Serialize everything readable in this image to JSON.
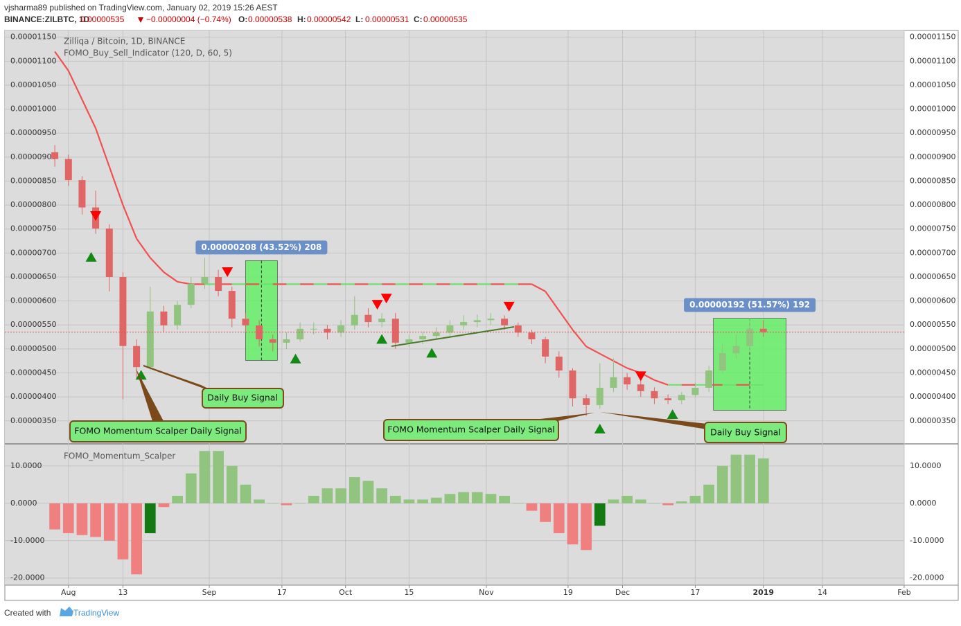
{
  "header": {
    "byline": "vjsharma89 published on TradingView.com, January 02, 2019 15:26 AEST",
    "symbol": "BINANCE:ZILBTC, 1D",
    "last": "0.00000535",
    "change": "−0.00000004 (−0.74%)",
    "ohlc": [
      {
        "label": "O:",
        "value": "0.00000538"
      },
      {
        "label": "H:",
        "value": "0.00000542"
      },
      {
        "label": "L:",
        "value": "0.00000531"
      },
      {
        "label": "C:",
        "value": "0.00000535"
      }
    ]
  },
  "footer": {
    "created": "Created with",
    "brand": "TradingView"
  },
  "chart_data": [
    {
      "type": "candlestick",
      "title": "Zilliqa / Bitcoin, 1D, BINANCE",
      "subtitle": "FOMO_Buy_Sell_Indicator (120, D, 60, 5)",
      "x": [
        "2018-07-29",
        "2018-08-01",
        "2018-08-04",
        "2018-08-07",
        "2018-08-10",
        "2018-08-13",
        "2018-08-16",
        "2018-08-19",
        "2018-08-22",
        "2018-08-25",
        "2018-08-28",
        "2018-08-31",
        "2018-09-03",
        "2018-09-06",
        "2018-09-09",
        "2018-09-12",
        "2018-09-15",
        "2018-09-18",
        "2018-09-21",
        "2018-09-24",
        "2018-09-27",
        "2018-09-30",
        "2018-10-03",
        "2018-10-06",
        "2018-10-09",
        "2018-10-12",
        "2018-10-15",
        "2018-10-18",
        "2018-10-21",
        "2018-10-24",
        "2018-10-27",
        "2018-10-30",
        "2018-11-02",
        "2018-11-05",
        "2018-11-08",
        "2018-11-11",
        "2018-11-14",
        "2018-11-17",
        "2018-11-20",
        "2018-11-23",
        "2018-11-26",
        "2018-11-29",
        "2018-12-02",
        "2018-12-05",
        "2018-12-08",
        "2018-12-11",
        "2018-12-14",
        "2018-12-17",
        "2018-12-20",
        "2018-12-23",
        "2018-12-26",
        "2018-12-29",
        "2019-01-01"
      ],
      "open": [
        9.1e-06,
        8.96e-06,
        8.52e-06,
        7.95e-06,
        7.51e-06,
        6.5e-06,
        5.06e-06,
        4.62e-06,
        5.78e-06,
        5.49e-06,
        5.92e-06,
        6.36e-06,
        6.5e-06,
        6.21e-06,
        5.63e-06,
        5.49e-06,
        5.2e-06,
        5.13e-06,
        5.2e-06,
        5.42e-06,
        5.42e-06,
        5.34e-06,
        5.49e-06,
        5.71e-06,
        5.56e-06,
        5.63e-06,
        5.13e-06,
        5.2e-06,
        5.27e-06,
        5.34e-06,
        5.49e-06,
        5.56e-06,
        5.6e-06,
        5.63e-06,
        5.49e-06,
        5.34e-06,
        5.2e-06,
        4.84e-06,
        4.55e-06,
        3.97e-06,
        3.83e-06,
        4.19e-06,
        4.41e-06,
        4.26e-06,
        4.12e-06,
        3.97e-06,
        3.93e-06,
        4.04e-06,
        4.19e-06,
        4.55e-06,
        4.91e-06,
        5.06e-06,
        5.42e-06
      ],
      "high": [
        9.25e-06,
        9.05e-06,
        8.6e-06,
        8.3e-06,
        7.6e-06,
        6.6e-06,
        5.2e-06,
        6.3e-06,
        5.9e-06,
        6e-06,
        6.5e-06,
        6.9e-06,
        6.65e-06,
        6.3e-06,
        5.75e-06,
        5.6e-06,
        5.3e-06,
        5.35e-06,
        5.55e-06,
        5.55e-06,
        5.5e-06,
        5.6e-06,
        6.1e-06,
        5.85e-06,
        5.75e-06,
        5.75e-06,
        5.3e-06,
        5.35e-06,
        5.45e-06,
        5.6e-06,
        5.7e-06,
        5.72e-06,
        5.75e-06,
        5.7e-06,
        5.55e-06,
        5.4e-06,
        5.25e-06,
        4.95e-06,
        4.6e-06,
        4.05e-06,
        4.7e-06,
        4.8e-06,
        4.5e-06,
        4.35e-06,
        4.2e-06,
        4.05e-06,
        4.1e-06,
        4.3e-06,
        4.65e-06,
        5.1e-06,
        5.3e-06,
        5.65e-06,
        5.6e-06
      ],
      "low": [
        8.8e-06,
        8.4e-06,
        7.8e-06,
        7.4e-06,
        6.2e-06,
        3.95e-06,
        4.4e-06,
        4.55e-06,
        5.35e-06,
        5.4e-06,
        5.85e-06,
        6.25e-06,
        6.1e-06,
        5.45e-06,
        5.35e-06,
        5.05e-06,
        4.95e-06,
        5e-06,
        5.15e-06,
        5.3e-06,
        5.2e-06,
        5.25e-06,
        5.4e-06,
        5.45e-06,
        5.45e-06,
        5e-06,
        5.05e-06,
        5.1e-06,
        5.2e-06,
        5.25e-06,
        5.4e-06,
        5.45e-06,
        5.5e-06,
        5.4e-06,
        5.25e-06,
        5.1e-06,
        4.7e-06,
        4.4e-06,
        3.8e-06,
        3.6e-06,
        3.75e-06,
        4.1e-06,
        4.15e-06,
        4e-06,
        3.85e-06,
        3.85e-06,
        3.85e-06,
        4e-06,
        4.1e-06,
        4.5e-06,
        4.8e-06,
        4.95e-06,
        5.25e-06
      ],
      "close": [
        8.96e-06,
        8.52e-06,
        7.95e-06,
        7.51e-06,
        6.5e-06,
        5.06e-06,
        4.62e-06,
        5.78e-06,
        5.49e-06,
        5.92e-06,
        6.36e-06,
        6.5e-06,
        6.21e-06,
        5.63e-06,
        5.49e-06,
        5.2e-06,
        5.13e-06,
        5.2e-06,
        5.42e-06,
        5.42e-06,
        5.34e-06,
        5.49e-06,
        5.71e-06,
        5.56e-06,
        5.63e-06,
        5.13e-06,
        5.2e-06,
        5.27e-06,
        5.34e-06,
        5.49e-06,
        5.56e-06,
        5.6e-06,
        5.63e-06,
        5.49e-06,
        5.34e-06,
        5.2e-06,
        4.84e-06,
        4.55e-06,
        3.97e-06,
        3.83e-06,
        4.19e-06,
        4.41e-06,
        4.26e-06,
        4.12e-06,
        3.97e-06,
        3.93e-06,
        4.04e-06,
        4.19e-06,
        4.55e-06,
        4.91e-06,
        5.06e-06,
        5.42e-06,
        5.35e-06
      ],
      "indicator": [
        1.12e-05,
        1.08e-05,
        1.02e-05,
        9.6e-06,
        8.8e-06,
        8e-06,
        7.3e-06,
        6.9e-06,
        6.6e-06,
        6.4e-06,
        6.35e-06,
        6.35e-06,
        6.35e-06,
        6.35e-06,
        6.35e-06,
        6.35e-06,
        6.35e-06,
        6.35e-06,
        6.35e-06,
        6.35e-06,
        6.35e-06,
        6.35e-06,
        6.35e-06,
        6.35e-06,
        6.35e-06,
        6.35e-06,
        6.35e-06,
        6.35e-06,
        6.35e-06,
        6.35e-06,
        6.35e-06,
        6.35e-06,
        6.35e-06,
        6.35e-06,
        6.35e-06,
        6.35e-06,
        6.2e-06,
        5.8e-06,
        5.4e-06,
        5.05e-06,
        4.9e-06,
        4.75e-06,
        4.6e-06,
        4.5e-06,
        4.35e-06,
        4.25e-06,
        4.25e-06,
        4.25e-06,
        4.25e-06,
        4.25e-06,
        4.25e-06,
        4.25e-06,
        4.25e-06
      ],
      "up_color": "#90c47f",
      "down_color": "#e06666",
      "sell_signals": {
        "x": [
          "2018-08-07",
          "2018-09-05",
          "2018-10-08",
          "2018-10-10",
          "2018-11-06",
          "2018-12-05"
        ],
        "y": [
          7.77e-06,
          6.6e-06,
          5.92e-06,
          6.05e-06,
          5.88e-06,
          4.43e-06
        ],
        "color": "#ff0000"
      },
      "buy_signals": {
        "x": [
          "2018-08-06",
          "2018-08-17",
          "2018-09-20",
          "2018-10-09",
          "2018-10-20",
          "2018-11-26",
          "2018-12-12"
        ],
        "y": [
          6.92e-06,
          4.46e-06,
          4.8e-06,
          5.21e-06,
          4.92e-06,
          3.34e-06,
          3.64e-06
        ],
        "color": "#138a13"
      },
      "measures": [
        {
          "label": "0.00000208 (43.52%) 208",
          "x": [
            "2018-09-09",
            "2018-09-16"
          ],
          "y": [
            4.76e-06,
            6.84e-06
          ]
        },
        {
          "label": "0.00000192 (51.57%) 192",
          "x": [
            "2018-12-21",
            "2019-01-06"
          ],
          "y": [
            3.72e-06,
            5.64e-06
          ]
        }
      ],
      "annotations": [
        "Daily Buy Signal",
        "FOMO Momentum Scalper Daily Signal",
        "FOMO Momentum Scalper Daily Signal",
        "Daily Buy Signal"
      ],
      "xlim": [
        "2018-07-18",
        "2019-02-01"
      ],
      "xticks": [
        {
          "value": "2018-08-01",
          "label": "Aug"
        },
        {
          "value": "2018-08-13",
          "label": "13"
        },
        {
          "value": "2018-09-01",
          "label": "Sep"
        },
        {
          "value": "2018-09-17",
          "label": "17"
        },
        {
          "value": "2018-10-01",
          "label": "Oct"
        },
        {
          "value": "2018-10-15",
          "label": "15"
        },
        {
          "value": "2018-11-01",
          "label": "Nov"
        },
        {
          "value": "2018-11-19",
          "label": "19"
        },
        {
          "value": "2018-12-01",
          "label": "Dec"
        },
        {
          "value": "2018-12-17",
          "label": "17"
        },
        {
          "value": "2019-01-01",
          "label": "2019"
        },
        {
          "value": "2019-01-14",
          "label": "14"
        },
        {
          "value": "2019-02-01",
          "label": "Feb"
        }
      ],
      "ylim": [
        3.02e-06,
        1.164e-05
      ],
      "yticks": [
        {
          "value": 1.15e-05,
          "label": "0.00001150"
        },
        {
          "value": 1.1e-05,
          "label": "0.00001100"
        },
        {
          "value": 1.05e-05,
          "label": "0.00001050"
        },
        {
          "value": 1e-05,
          "label": "0.00001000"
        },
        {
          "value": 9.5e-06,
          "label": "0.00000950"
        },
        {
          "value": 9e-06,
          "label": "0.00000900"
        },
        {
          "value": 8.5e-06,
          "label": "0.00000850"
        },
        {
          "value": 8e-06,
          "label": "0.00000800"
        },
        {
          "value": 7.5e-06,
          "label": "0.00000750"
        },
        {
          "value": 7e-06,
          "label": "0.00000700"
        },
        {
          "value": 6.5e-06,
          "label": "0.00000650"
        },
        {
          "value": 6e-06,
          "label": "0.00000600"
        },
        {
          "value": 5.5e-06,
          "label": "0.00000550"
        },
        {
          "value": 5e-06,
          "label": "0.00000500"
        },
        {
          "value": 4.5e-06,
          "label": "0.00000450"
        },
        {
          "value": 4e-06,
          "label": "0.00000400"
        },
        {
          "value": 3.5e-06,
          "label": "0.00000350"
        }
      ],
      "grid": true
    },
    {
      "type": "histogram",
      "title": "FOMO_Momentum_Scalper",
      "values": [
        -7,
        -8,
        -8.5,
        -9,
        -10,
        -15,
        -19,
        -8,
        -1,
        2,
        8,
        14,
        14,
        10,
        5,
        1,
        0,
        -0.5,
        0,
        2,
        4,
        4,
        7,
        6,
        4,
        2,
        1,
        1,
        1.5,
        2.5,
        3,
        3,
        2.5,
        2,
        0,
        -2,
        -5,
        -8,
        -11,
        -12.5,
        -6,
        1,
        2,
        1,
        0,
        -0.5,
        0.5,
        2,
        5,
        10,
        13,
        13,
        12
      ],
      "positive_color": "#90c47f",
      "negative_color": "#f08080",
      "rising_negative_color": "#137a13",
      "ylim": [
        -21.9,
        15.9
      ],
      "yticks": [
        {
          "value": 10,
          "label": "10.0000"
        },
        {
          "value": 0,
          "label": "0.0000"
        },
        {
          "value": -10,
          "label": "-10.0000"
        },
        {
          "value": -20,
          "label": "-20.0000"
        }
      ],
      "grid": true
    }
  ]
}
